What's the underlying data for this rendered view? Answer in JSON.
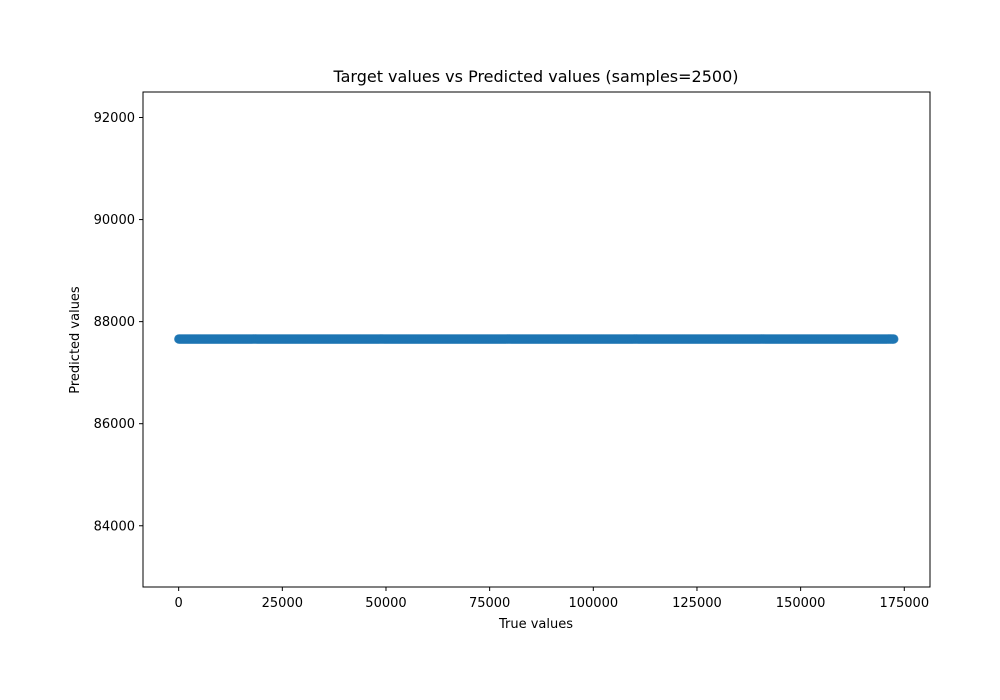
{
  "chart_data": {
    "type": "scatter",
    "title": "Target values vs Predicted values (samples=2500)",
    "xlabel": "True values",
    "ylabel": "Predicted values",
    "xlim": [
      -8600,
      181200
    ],
    "ylim": [
      82800,
      92500
    ],
    "xticks": [
      0,
      25000,
      50000,
      75000,
      100000,
      125000,
      150000,
      175000
    ],
    "yticks": [
      84000,
      86000,
      88000,
      90000,
      92000
    ],
    "grid": false,
    "point_color": "#1f77b4",
    "series": [
      {
        "x_range": [
          0,
          172500
        ],
        "y_value": 87660,
        "count": 2500
      }
    ]
  }
}
